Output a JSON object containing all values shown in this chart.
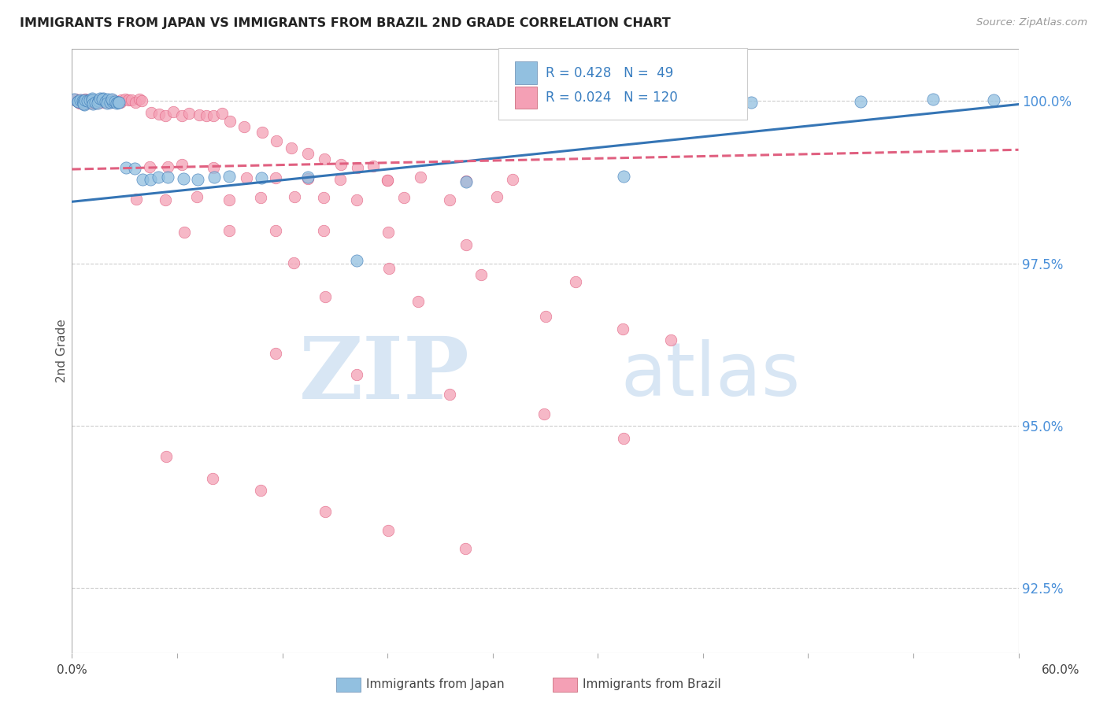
{
  "title": "IMMIGRANTS FROM JAPAN VS IMMIGRANTS FROM BRAZIL 2ND GRADE CORRELATION CHART",
  "source": "Source: ZipAtlas.com",
  "ylabel": "2nd Grade",
  "yaxis_labels": [
    "100.0%",
    "97.5%",
    "95.0%",
    "92.5%"
  ],
  "yaxis_values": [
    1.0,
    0.975,
    0.95,
    0.925
  ],
  "xmin": 0.0,
  "xmax": 0.6,
  "ymin": 0.915,
  "ymax": 1.008,
  "legend_R_japan": "R = 0.428",
  "legend_N_japan": "N =  49",
  "legend_R_brazil": "R = 0.024",
  "legend_N_brazil": "N = 120",
  "japan_color": "#92C0E0",
  "brazil_color": "#F4A0B5",
  "japan_trend_color": "#3575B5",
  "brazil_trend_color": "#E06080",
  "japan_trend_x0": 0.0,
  "japan_trend_y0": 0.9845,
  "japan_trend_x1": 0.6,
  "japan_trend_y1": 0.9995,
  "brazil_trend_x0": 0.0,
  "brazil_trend_y0": 0.9895,
  "brazil_trend_x1": 0.6,
  "brazil_trend_y1": 0.9925,
  "japan_pts_x": [
    0.002,
    0.003,
    0.004,
    0.005,
    0.006,
    0.007,
    0.008,
    0.008,
    0.009,
    0.01,
    0.011,
    0.012,
    0.013,
    0.014,
    0.015,
    0.016,
    0.017,
    0.018,
    0.019,
    0.02,
    0.021,
    0.022,
    0.023,
    0.024,
    0.025,
    0.026,
    0.027,
    0.028,
    0.029,
    0.03,
    0.035,
    0.04,
    0.045,
    0.05,
    0.055,
    0.06,
    0.07,
    0.08,
    0.09,
    0.1,
    0.12,
    0.15,
    0.18,
    0.25,
    0.35,
    0.43,
    0.5,
    0.545,
    0.585
  ],
  "japan_pts_y": [
    1.0,
    1.0,
    1.0,
    1.0,
    1.0,
    1.0,
    1.0,
    1.0,
    1.0,
    1.0,
    1.0,
    1.0,
    1.0,
    1.0,
    1.0,
    1.0,
    1.0,
    1.0,
    1.0,
    1.0,
    1.0,
    1.0,
    1.0,
    1.0,
    1.0,
    1.0,
    1.0,
    1.0,
    1.0,
    1.0,
    0.99,
    0.99,
    0.988,
    0.988,
    0.988,
    0.988,
    0.988,
    0.988,
    0.988,
    0.988,
    0.988,
    0.988,
    0.975,
    0.988,
    0.988,
    1.0,
    1.0,
    1.0,
    1.0
  ],
  "brazil_pts_x": [
    0.002,
    0.003,
    0.003,
    0.004,
    0.004,
    0.005,
    0.005,
    0.005,
    0.006,
    0.006,
    0.007,
    0.007,
    0.007,
    0.008,
    0.008,
    0.008,
    0.009,
    0.009,
    0.01,
    0.01,
    0.01,
    0.011,
    0.011,
    0.012,
    0.012,
    0.013,
    0.013,
    0.014,
    0.014,
    0.015,
    0.016,
    0.016,
    0.017,
    0.018,
    0.019,
    0.02,
    0.021,
    0.022,
    0.023,
    0.025,
    0.026,
    0.028,
    0.03,
    0.032,
    0.034,
    0.036,
    0.038,
    0.04,
    0.042,
    0.045,
    0.05,
    0.055,
    0.06,
    0.065,
    0.07,
    0.075,
    0.08,
    0.085,
    0.09,
    0.095,
    0.1,
    0.11,
    0.12,
    0.13,
    0.14,
    0.15,
    0.16,
    0.17,
    0.18,
    0.19,
    0.2,
    0.05,
    0.06,
    0.07,
    0.09,
    0.11,
    0.13,
    0.15,
    0.17,
    0.2,
    0.22,
    0.25,
    0.28,
    0.04,
    0.06,
    0.08,
    0.1,
    0.12,
    0.14,
    0.16,
    0.18,
    0.21,
    0.24,
    0.27,
    0.07,
    0.1,
    0.13,
    0.16,
    0.2,
    0.25,
    0.14,
    0.2,
    0.26,
    0.32,
    0.16,
    0.22,
    0.3,
    0.35,
    0.38,
    0.13,
    0.18,
    0.24,
    0.3,
    0.35,
    0.06,
    0.09,
    0.12,
    0.16,
    0.2,
    0.25
  ],
  "brazil_pts_y": [
    1.0,
    1.0,
    1.0,
    1.0,
    1.0,
    1.0,
    1.0,
    1.0,
    1.0,
    1.0,
    1.0,
    1.0,
    1.0,
    1.0,
    1.0,
    1.0,
    1.0,
    1.0,
    1.0,
    1.0,
    1.0,
    1.0,
    1.0,
    1.0,
    1.0,
    1.0,
    1.0,
    1.0,
    1.0,
    1.0,
    1.0,
    1.0,
    1.0,
    1.0,
    1.0,
    1.0,
    1.0,
    1.0,
    1.0,
    1.0,
    1.0,
    1.0,
    1.0,
    1.0,
    1.0,
    1.0,
    1.0,
    1.0,
    1.0,
    1.0,
    0.998,
    0.998,
    0.998,
    0.998,
    0.998,
    0.998,
    0.998,
    0.998,
    0.998,
    0.998,
    0.997,
    0.996,
    0.995,
    0.994,
    0.993,
    0.992,
    0.991,
    0.99,
    0.99,
    0.99,
    0.988,
    0.99,
    0.99,
    0.99,
    0.99,
    0.988,
    0.988,
    0.988,
    0.988,
    0.988,
    0.988,
    0.988,
    0.988,
    0.985,
    0.985,
    0.985,
    0.985,
    0.985,
    0.985,
    0.985,
    0.985,
    0.985,
    0.985,
    0.985,
    0.98,
    0.98,
    0.98,
    0.98,
    0.98,
    0.978,
    0.975,
    0.974,
    0.973,
    0.972,
    0.97,
    0.969,
    0.967,
    0.965,
    0.963,
    0.961,
    0.958,
    0.955,
    0.952,
    0.948,
    0.945,
    0.942,
    0.94,
    0.937,
    0.934,
    0.931
  ]
}
